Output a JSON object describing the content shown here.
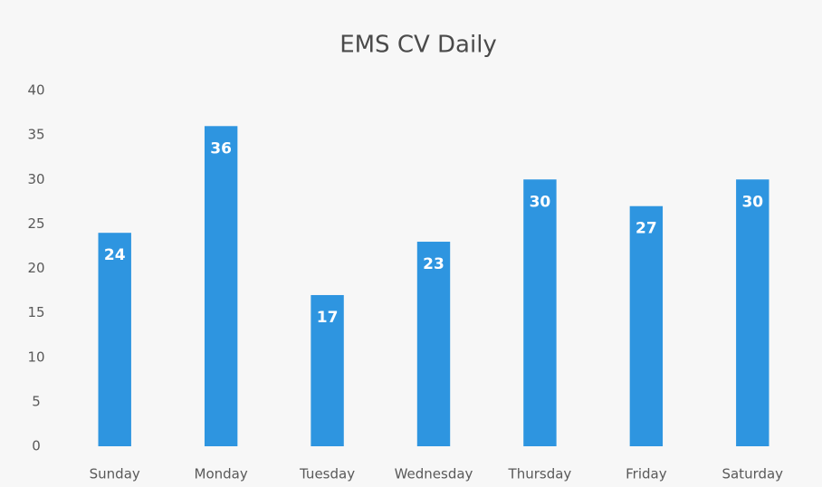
{
  "chart_data": {
    "type": "bar",
    "title": "EMS CV Daily",
    "categories": [
      "Sunday",
      "Monday",
      "Tuesday",
      "Wednesday",
      "Thursday",
      "Friday",
      "Saturday"
    ],
    "values": [
      24,
      36,
      17,
      23,
      30,
      27,
      30
    ],
    "color": "#2e95e0",
    "ylim": [
      0,
      40
    ],
    "yticks": [
      0,
      5,
      10,
      15,
      20,
      25,
      30,
      35,
      40
    ],
    "grid": false
  }
}
